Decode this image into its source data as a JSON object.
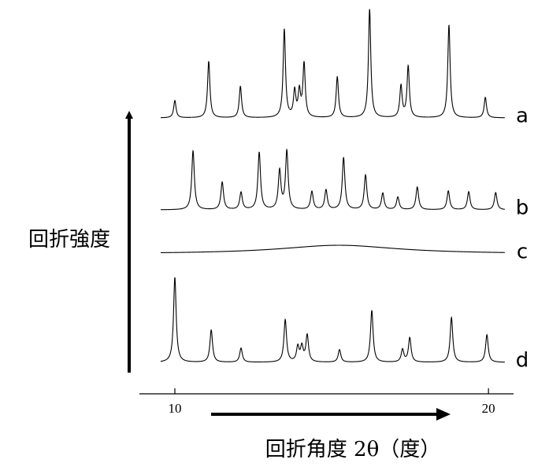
{
  "chart_data": {
    "type": "peaks",
    "x_label": "回折角度 2θ（度）",
    "y_label": "回折強度",
    "xlim": [
      8.87,
      20.8
    ],
    "xticks": [
      10,
      20
    ],
    "series": [
      {
        "name": "a",
        "color": "#000000",
        "x": [
          10.0,
          11.08,
          12.09,
          13.49,
          13.82,
          13.97,
          14.12,
          15.18,
          16.21,
          17.21,
          17.44,
          18.74,
          19.9
        ],
        "values": [
          22,
          72,
          40,
          112,
          33,
          32,
          68,
          52,
          138,
          40,
          65,
          118,
          26
        ]
      },
      {
        "name": "b",
        "color": "#000000",
        "x": [
          10.58,
          11.51,
          12.11,
          12.69,
          13.34,
          13.57,
          14.37,
          14.82,
          15.38,
          16.08,
          16.63,
          17.11,
          17.73,
          18.72,
          19.37,
          20.23
        ],
        "values": [
          75,
          35,
          22,
          73,
          49,
          74,
          23,
          25,
          66,
          44,
          21,
          16,
          29,
          24,
          23,
          22
        ]
      },
      {
        "name": "c",
        "color": "#000000",
        "x": [
          15.23
        ],
        "values": [
          11
        ]
      },
      {
        "name": "d",
        "color": "#000000",
        "x": [
          10.0,
          11.16,
          12.11,
          13.52,
          13.92,
          14.05,
          14.22,
          15.25,
          16.28,
          17.26,
          17.49,
          18.82,
          19.95
        ],
        "values": [
          108,
          41,
          18,
          54,
          19,
          19,
          34,
          16,
          66,
          16,
          31,
          57,
          35
        ]
      }
    ]
  }
}
